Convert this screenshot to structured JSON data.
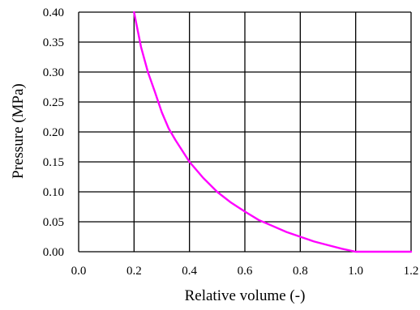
{
  "chart_data": {
    "type": "line",
    "title": "",
    "xlabel": "Relative volume (-)",
    "ylabel": "Pressure (MPa)",
    "xlim": [
      0.0,
      1.2
    ],
    "ylim": [
      0.0,
      0.4
    ],
    "x_ticks": [
      0.0,
      0.2,
      0.4,
      0.6,
      0.8,
      1.0,
      1.2
    ],
    "y_ticks": [
      0.0,
      0.05,
      0.1,
      0.15,
      0.2,
      0.25,
      0.3,
      0.35,
      0.4
    ],
    "x_tick_labels": [
      "0.0",
      "0.2",
      "0.4",
      "0.6",
      "0.8",
      "1.0",
      "1.2"
    ],
    "y_tick_labels": [
      "0.00",
      "0.05",
      "0.10",
      "0.15",
      "0.20",
      "0.25",
      "0.30",
      "0.35",
      "0.40"
    ],
    "grid": true,
    "legend": "none",
    "series": [
      {
        "color": "#ff00ff",
        "x": [
          0.2,
          0.225,
          0.25,
          0.275,
          0.3,
          0.325,
          0.35,
          0.4,
          0.45,
          0.5,
          0.55,
          0.6,
          0.65,
          0.7,
          0.75,
          0.8,
          0.85,
          0.9,
          0.95,
          1.0,
          1.2
        ],
        "y": [
          0.4,
          0.342,
          0.3,
          0.267,
          0.233,
          0.206,
          0.186,
          0.15,
          0.123,
          0.1,
          0.082,
          0.067,
          0.053,
          0.043,
          0.033,
          0.025,
          0.017,
          0.011,
          0.005,
          0.0,
          0.0
        ]
      }
    ]
  }
}
